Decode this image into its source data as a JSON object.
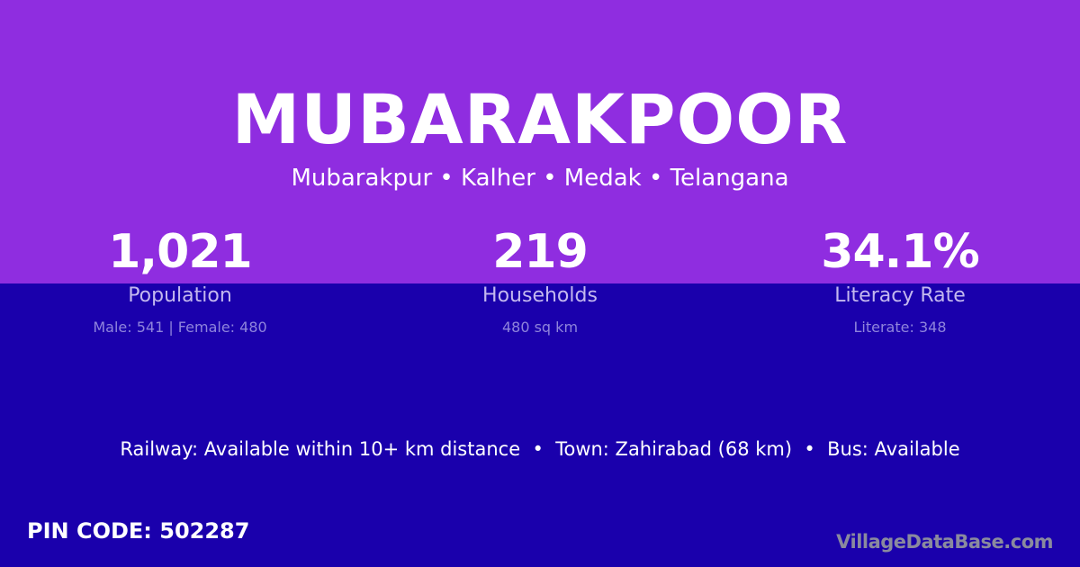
{
  "title": "MUBARAKPOOR",
  "subtitle": "Mubarakpur • Kalher • Medak • Telangana",
  "stats": [
    {
      "value": "1,021",
      "label": "Population",
      "sub": "Male: 541 | Female: 480"
    },
    {
      "value": "219",
      "label": "Households",
      "sub": "480 sq km"
    },
    {
      "value": "34.1%",
      "label": "Literacy Rate",
      "sub": "Literate: 348"
    }
  ],
  "info": "Railway: Available within 10+ km distance  •  Town: Zahirabad (68 km)  •  Bus: Available",
  "pin": "PIN CODE: 502287",
  "brand": "VillageDataBase.com",
  "colors": {
    "top": "#8f2de0",
    "bottom": "#1a00ac"
  }
}
